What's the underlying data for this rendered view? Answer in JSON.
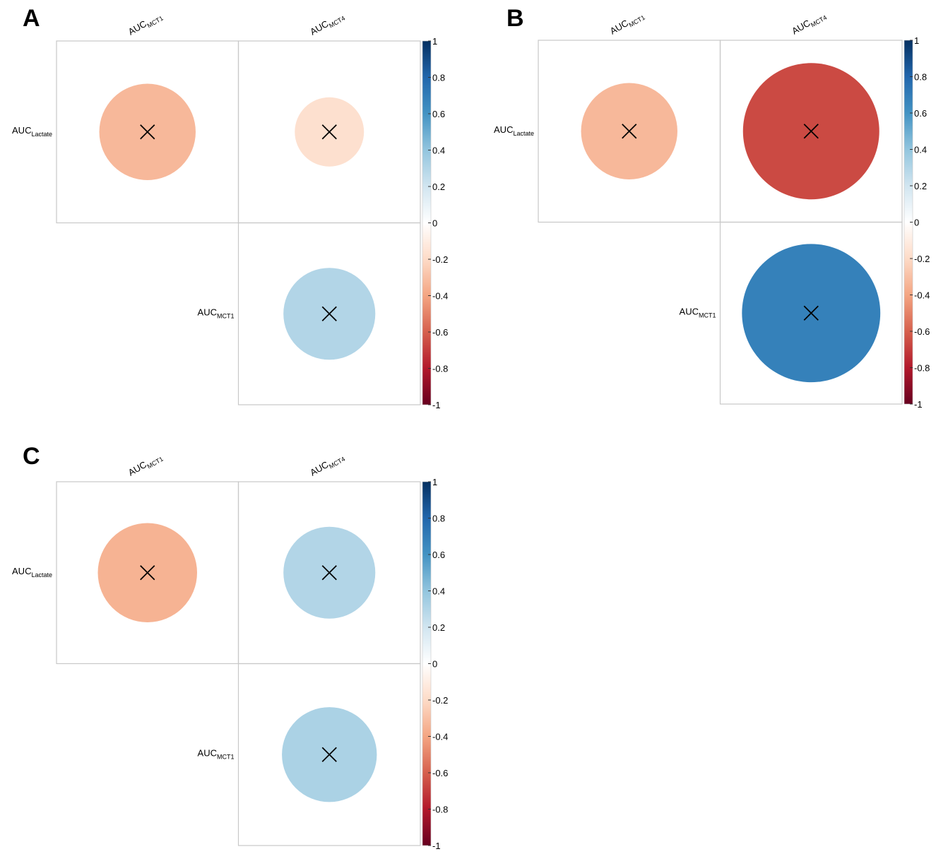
{
  "chart_data": [
    {
      "type": "heatmap",
      "panel_label": "A",
      "columns": [
        {
          "main": "AUC",
          "sub": "MCT1"
        },
        {
          "main": "AUC",
          "sub": "MCT4"
        }
      ],
      "rows": [
        {
          "main": "AUC",
          "sub": "Lactate"
        },
        {
          "main": "AUC",
          "sub": "MCT1"
        }
      ],
      "cells": [
        {
          "row": 0,
          "col": 0,
          "value": -0.33,
          "marked": true
        },
        {
          "row": 0,
          "col": 1,
          "value": -0.17,
          "marked": true
        },
        {
          "row": 1,
          "col": 1,
          "value": 0.3,
          "marked": true
        }
      ],
      "colorbar": {
        "range": [
          -1,
          1
        ],
        "ticks": [
          "1",
          "0.8",
          "0.6",
          "0.4",
          "0.2",
          "0",
          "-0.2",
          "-0.4",
          "-0.6",
          "-0.8",
          "-1"
        ]
      }
    },
    {
      "type": "heatmap",
      "panel_label": "B",
      "columns": [
        {
          "main": "AUC",
          "sub": "MCT1"
        },
        {
          "main": "AUC",
          "sub": "MCT4"
        }
      ],
      "rows": [
        {
          "main": "AUC",
          "sub": "Lactate"
        },
        {
          "main": "AUC",
          "sub": "MCT1"
        }
      ],
      "cells": [
        {
          "row": 0,
          "col": 0,
          "value": -0.33,
          "marked": true
        },
        {
          "row": 0,
          "col": 1,
          "value": -0.66,
          "marked": true
        },
        {
          "row": 1,
          "col": 1,
          "value": 0.68,
          "marked": true
        }
      ],
      "colorbar": {
        "range": [
          -1,
          1
        ],
        "ticks": [
          "1",
          "0.8",
          "0.6",
          "0.4",
          "0.2",
          "0",
          "-0.2",
          "-0.4",
          "-0.6",
          "-0.8",
          "-1"
        ]
      }
    },
    {
      "type": "heatmap",
      "panel_label": "C",
      "columns": [
        {
          "main": "AUC",
          "sub": "MCT1"
        },
        {
          "main": "AUC",
          "sub": "MCT4"
        }
      ],
      "rows": [
        {
          "main": "AUC",
          "sub": "Lactate"
        },
        {
          "main": "AUC",
          "sub": "MCT1"
        }
      ],
      "cells": [
        {
          "row": 0,
          "col": 0,
          "value": -0.35,
          "marked": true
        },
        {
          "row": 0,
          "col": 1,
          "value": 0.3,
          "marked": true
        },
        {
          "row": 1,
          "col": 1,
          "value": 0.32,
          "marked": true
        }
      ],
      "colorbar": {
        "range": [
          -1,
          1
        ],
        "ticks": [
          "1",
          "0.8",
          "0.6",
          "0.4",
          "0.2",
          "0",
          "-0.2",
          "-0.4",
          "-0.6",
          "-0.8",
          "-1"
        ]
      }
    }
  ],
  "palette": [
    "#67001F",
    "#B2182B",
    "#D6604D",
    "#F4A582",
    "#FDDBC7",
    "#FFFFFF",
    "#D1E5F0",
    "#92C5DE",
    "#4393C3",
    "#2166AC",
    "#053061"
  ]
}
